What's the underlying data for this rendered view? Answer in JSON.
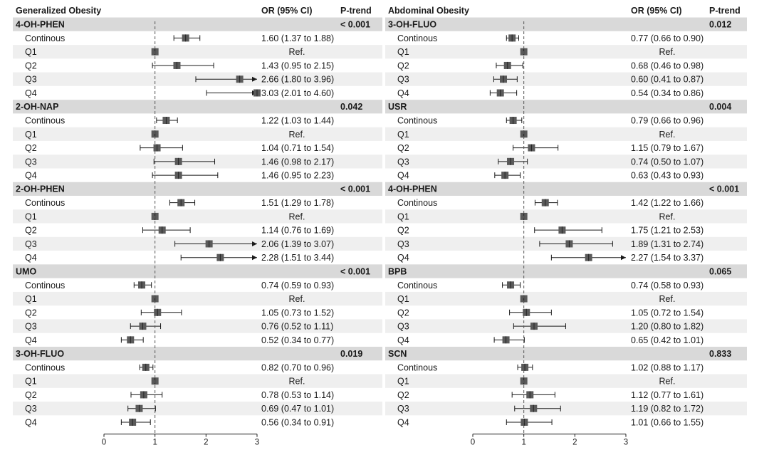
{
  "chart_data": {
    "type": "forest",
    "x_axis": {
      "ticks": [
        0,
        1,
        2,
        3
      ],
      "range": [
        0,
        3
      ],
      "reference_line": 1
    },
    "columns": {
      "or": "OR (95% CI)",
      "ptrend": "P-trend"
    },
    "panels": [
      {
        "title": "Generalized Obesity",
        "groups": [
          {
            "name": "4-OH-PHEN",
            "p_trend": "< 0.001",
            "rows": [
              {
                "label": "Continous",
                "or": 1.6,
                "lo": 1.37,
                "hi": 1.88,
                "text": "1.60 (1.37 to 1.88)"
              },
              {
                "label": "Q1",
                "or": 1,
                "lo": 1,
                "hi": 1,
                "text": "Ref."
              },
              {
                "label": "Q2",
                "or": 1.43,
                "lo": 0.95,
                "hi": 2.15,
                "text": "1.43 (0.95 to 2.15)"
              },
              {
                "label": "Q3",
                "or": 2.66,
                "lo": 1.8,
                "hi": 3.96,
                "text": "2.66 (1.80 to 3.96)"
              },
              {
                "label": "Q4",
                "or": 3.03,
                "lo": 2.01,
                "hi": 4.6,
                "text": "3.03 (2.01 to 4.60)"
              }
            ]
          },
          {
            "name": "2-OH-NAP",
            "p_trend": "0.042",
            "rows": [
              {
                "label": "Continous",
                "or": 1.22,
                "lo": 1.03,
                "hi": 1.44,
                "text": "1.22 (1.03 to 1.44)"
              },
              {
                "label": "Q1",
                "or": 1,
                "lo": 1,
                "hi": 1,
                "text": "Ref."
              },
              {
                "label": "Q2",
                "or": 1.04,
                "lo": 0.71,
                "hi": 1.54,
                "text": "1.04 (0.71 to 1.54)"
              },
              {
                "label": "Q3",
                "or": 1.46,
                "lo": 0.98,
                "hi": 2.17,
                "text": "1.46 (0.98 to 2.17)"
              },
              {
                "label": "Q4",
                "or": 1.46,
                "lo": 0.95,
                "hi": 2.23,
                "text": "1.46 (0.95 to 2.23)"
              }
            ]
          },
          {
            "name": "2-OH-PHEN",
            "p_trend": "< 0.001",
            "rows": [
              {
                "label": "Continous",
                "or": 1.51,
                "lo": 1.29,
                "hi": 1.78,
                "text": "1.51 (1.29 to 1.78)"
              },
              {
                "label": "Q1",
                "or": 1,
                "lo": 1,
                "hi": 1,
                "text": "Ref."
              },
              {
                "label": "Q2",
                "or": 1.14,
                "lo": 0.76,
                "hi": 1.69,
                "text": "1.14 (0.76 to 1.69)"
              },
              {
                "label": "Q3",
                "or": 2.06,
                "lo": 1.39,
                "hi": 3.07,
                "text": "2.06 (1.39 to 3.07)"
              },
              {
                "label": "Q4",
                "or": 2.28,
                "lo": 1.51,
                "hi": 3.44,
                "text": "2.28 (1.51 to 3.44)"
              }
            ]
          },
          {
            "name": "UMO",
            "p_trend": "< 0.001",
            "rows": [
              {
                "label": "Continous",
                "or": 0.74,
                "lo": 0.59,
                "hi": 0.93,
                "text": "0.74 (0.59 to 0.93)"
              },
              {
                "label": "Q1",
                "or": 1,
                "lo": 1,
                "hi": 1,
                "text": "Ref."
              },
              {
                "label": "Q2",
                "or": 1.05,
                "lo": 0.73,
                "hi": 1.52,
                "text": "1.05 (0.73 to 1.52)"
              },
              {
                "label": "Q3",
                "or": 0.76,
                "lo": 0.52,
                "hi": 1.11,
                "text": "0.76 (0.52 to 1.11)"
              },
              {
                "label": "Q4",
                "or": 0.52,
                "lo": 0.34,
                "hi": 0.77,
                "text": "0.52 (0.34 to 0.77)"
              }
            ]
          },
          {
            "name": "3-OH-FLUO",
            "p_trend": "0.019",
            "rows": [
              {
                "label": "Continous",
                "or": 0.82,
                "lo": 0.7,
                "hi": 0.96,
                "text": "0.82 (0.70 to 0.96)"
              },
              {
                "label": "Q1",
                "or": 1,
                "lo": 1,
                "hi": 1,
                "text": "Ref."
              },
              {
                "label": "Q2",
                "or": 0.78,
                "lo": 0.53,
                "hi": 1.14,
                "text": "0.78 (0.53 to 1.14)"
              },
              {
                "label": "Q3",
                "or": 0.69,
                "lo": 0.47,
                "hi": 1.01,
                "text": "0.69 (0.47 to 1.01)"
              },
              {
                "label": "Q4",
                "or": 0.56,
                "lo": 0.34,
                "hi": 0.91,
                "text": "0.56 (0.34 to 0.91)"
              }
            ]
          }
        ]
      },
      {
        "title": "Abdominal Obesity",
        "groups": [
          {
            "name": "3-OH-FLUO",
            "p_trend": "0.012",
            "rows": [
              {
                "label": "Continous",
                "or": 0.77,
                "lo": 0.66,
                "hi": 0.9,
                "text": "0.77 (0.66 to 0.90)"
              },
              {
                "label": "Q1",
                "or": 1,
                "lo": 1,
                "hi": 1,
                "text": "Ref."
              },
              {
                "label": "Q2",
                "or": 0.68,
                "lo": 0.46,
                "hi": 0.98,
                "text": "0.68 (0.46 to 0.98)"
              },
              {
                "label": "Q3",
                "or": 0.6,
                "lo": 0.41,
                "hi": 0.87,
                "text": "0.60 (0.41 to 0.87)"
              },
              {
                "label": "Q4",
                "or": 0.54,
                "lo": 0.34,
                "hi": 0.86,
                "text": "0.54 (0.34 to 0.86)"
              }
            ]
          },
          {
            "name": "USR",
            "p_trend": "0.004",
            "rows": [
              {
                "label": "Continous",
                "or": 0.79,
                "lo": 0.66,
                "hi": 0.96,
                "text": "0.79 (0.66 to 0.96)"
              },
              {
                "label": "Q1",
                "or": 1,
                "lo": 1,
                "hi": 1,
                "text": "Ref."
              },
              {
                "label": "Q2",
                "or": 1.15,
                "lo": 0.79,
                "hi": 1.67,
                "text": "1.15 (0.79 to 1.67)"
              },
              {
                "label": "Q3",
                "or": 0.74,
                "lo": 0.5,
                "hi": 1.07,
                "text": "0.74 (0.50 to 1.07)"
              },
              {
                "label": "Q4",
                "or": 0.63,
                "lo": 0.43,
                "hi": 0.93,
                "text": "0.63 (0.43 to 0.93)"
              }
            ]
          },
          {
            "name": "4-OH-PHEN",
            "p_trend": "< 0.001",
            "rows": [
              {
                "label": "Continous",
                "or": 1.42,
                "lo": 1.22,
                "hi": 1.66,
                "text": "1.42 (1.22 to 1.66)"
              },
              {
                "label": "Q1",
                "or": 1,
                "lo": 1,
                "hi": 1,
                "text": "Ref."
              },
              {
                "label": "Q2",
                "or": 1.75,
                "lo": 1.21,
                "hi": 2.53,
                "text": "1.75 (1.21 to 2.53)"
              },
              {
                "label": "Q3",
                "or": 1.89,
                "lo": 1.31,
                "hi": 2.74,
                "text": "1.89 (1.31 to 2.74)"
              },
              {
                "label": "Q4",
                "or": 2.27,
                "lo": 1.54,
                "hi": 3.37,
                "text": "2.27 (1.54 to 3.37)"
              }
            ]
          },
          {
            "name": "BPB",
            "p_trend": "0.065",
            "rows": [
              {
                "label": "Continous",
                "or": 0.74,
                "lo": 0.58,
                "hi": 0.93,
                "text": "0.74 (0.58 to 0.93)"
              },
              {
                "label": "Q1",
                "or": 1,
                "lo": 1,
                "hi": 1,
                "text": "Ref."
              },
              {
                "label": "Q2",
                "or": 1.05,
                "lo": 0.72,
                "hi": 1.54,
                "text": "1.05 (0.72 to 1.54)"
              },
              {
                "label": "Q3",
                "or": 1.2,
                "lo": 0.8,
                "hi": 1.82,
                "text": "1.20 (0.80 to 1.82)"
              },
              {
                "label": "Q4",
                "or": 0.65,
                "lo": 0.42,
                "hi": 1.01,
                "text": "0.65 (0.42 to 1.01)"
              }
            ]
          },
          {
            "name": "SCN",
            "p_trend": "0.833",
            "rows": [
              {
                "label": "Continous",
                "or": 1.02,
                "lo": 0.88,
                "hi": 1.17,
                "text": "1.02 (0.88 to 1.17)"
              },
              {
                "label": "Q1",
                "or": 1,
                "lo": 1,
                "hi": 1,
                "text": "Ref."
              },
              {
                "label": "Q2",
                "or": 1.12,
                "lo": 0.77,
                "hi": 1.61,
                "text": "1.12 (0.77 to 1.61)"
              },
              {
                "label": "Q3",
                "or": 1.19,
                "lo": 0.82,
                "hi": 1.72,
                "text": "1.19 (0.82 to 1.72)"
              },
              {
                "label": "Q4",
                "or": 1.01,
                "lo": 0.66,
                "hi": 1.55,
                "text": "1.01 (0.66 to 1.55)"
              }
            ]
          }
        ]
      }
    ]
  },
  "colors": {
    "header_band": "#d9d9d9",
    "stripe": "#efefef",
    "marker": "#5a5a5a",
    "line": "#1a1a1a",
    "reference": "#555555"
  }
}
